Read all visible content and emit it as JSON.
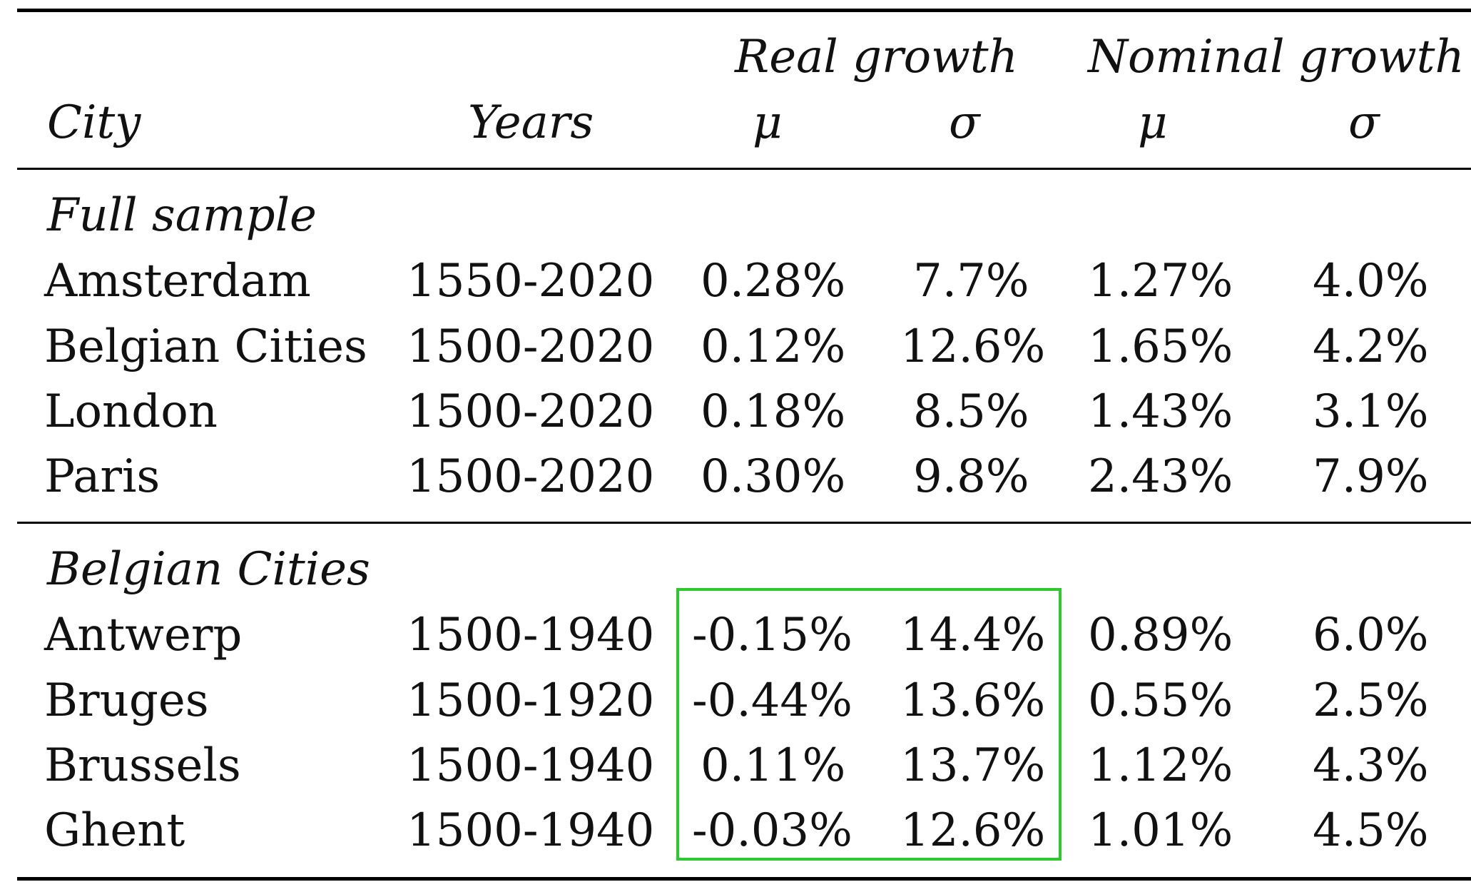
{
  "header": {
    "group_real": "Real growth",
    "group_nominal": "Nominal growth",
    "city": "City",
    "years": "Years",
    "real_mu": "μ",
    "real_sigma": "σ",
    "nominal_mu": "μ",
    "nominal_sigma": "σ"
  },
  "sections": [
    {
      "title": "Full sample",
      "rows": [
        {
          "city": "Amsterdam",
          "years": "1550-2020",
          "real_mu": "0.28%",
          "real_sigma": "7.7%",
          "nominal_mu": "1.27%",
          "nominal_sigma": "4.0%"
        },
        {
          "city": "Belgian Cities",
          "years": "1500-2020",
          "real_mu": "0.12%",
          "real_sigma": "12.6%",
          "nominal_mu": "1.65%",
          "nominal_sigma": "4.2%"
        },
        {
          "city": "London",
          "years": "1500-2020",
          "real_mu": "0.18%",
          "real_sigma": "8.5%",
          "nominal_mu": "1.43%",
          "nominal_sigma": "3.1%"
        },
        {
          "city": "Paris",
          "years": "1500-2020",
          "real_mu": "0.30%",
          "real_sigma": "9.8%",
          "nominal_mu": "2.43%",
          "nominal_sigma": "7.9%"
        }
      ]
    },
    {
      "title": "Belgian Cities",
      "rows": [
        {
          "city": "Antwerp",
          "years": "1500-1940",
          "real_mu": "-0.15%",
          "real_sigma": "14.4%",
          "nominal_mu": "0.89%",
          "nominal_sigma": "6.0%"
        },
        {
          "city": "Bruges",
          "years": "1500-1920",
          "real_mu": "-0.44%",
          "real_sigma": "13.6%",
          "nominal_mu": "0.55%",
          "nominal_sigma": "2.5%"
        },
        {
          "city": "Brussels",
          "years": "1500-1940",
          "real_mu": "0.11%",
          "real_sigma": "13.7%",
          "nominal_mu": "1.12%",
          "nominal_sigma": "4.3%"
        },
        {
          "city": "Ghent",
          "years": "1500-1940",
          "real_mu": "-0.03%",
          "real_sigma": "12.6%",
          "nominal_mu": "1.01%",
          "nominal_sigma": "4.5%"
        }
      ]
    }
  ],
  "highlight_color": "#2ec92e"
}
